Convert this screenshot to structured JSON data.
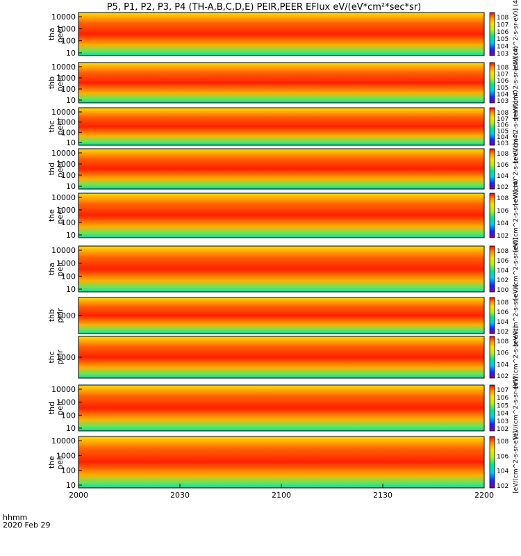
{
  "chart_data": {
    "type": "heatmap",
    "title": "P5, P1, P2, P3, P4 (TH-A,B,C,D,E) PEIR,PEER EFlux eV/(eV*cm²*sec*sr)",
    "x_ticks": [
      "2000",
      "2030",
      "2100",
      "2130",
      "2200"
    ],
    "x_range": [
      "20:00",
      "22:00"
    ],
    "x_label": "hhmm",
    "date_label": "2020 Feb 29",
    "panels": [
      {
        "label": [
          "tha",
          "peer"
        ],
        "yticks": [
          "10000",
          "1000",
          "100",
          "10"
        ],
        "cbar_ticks": [
          "10^8",
          "10^7",
          "10^6",
          "10^5",
          "10^4",
          "10^3"
        ],
        "cbar_label": "[eV/(cm^2-s-sr-eV)] (4)"
      },
      {
        "label": [
          "thb",
          "peer"
        ],
        "yticks": [
          "10000",
          "1000",
          "100",
          "10"
        ],
        "cbar_ticks": [
          "10^8",
          "10^7",
          "10^6",
          "10^5",
          "10^4",
          "10^3"
        ],
        "cbar_label": "[eV/(cm^2-s-sr-eV)] (4)"
      },
      {
        "label": [
          "thc",
          "peer"
        ],
        "yticks": [
          "10000",
          "1000",
          "100",
          "10"
        ],
        "cbar_ticks": [
          "10^8",
          "10^7",
          "10^6",
          "10^5",
          "10^4",
          "10^3"
        ],
        "cbar_label": "[eV/(cm^2-s-sr-eV)] (4)"
      },
      {
        "label": [
          "thd",
          "peer"
        ],
        "yticks": [
          "10000",
          "1000",
          "100",
          "10"
        ],
        "cbar_ticks": [
          "10^8",
          "10^6",
          "10^4",
          "10^2"
        ],
        "cbar_label": "[eV/(cm^2-s-sr-eV)] (4)"
      },
      {
        "label": [
          "the",
          "peer"
        ],
        "yticks": [
          "10000",
          "1000",
          "100",
          "10"
        ],
        "cbar_ticks": [
          "10^8",
          "10^6",
          "10^4",
          "10^2"
        ],
        "cbar_label": "[eV/(cm^2-s-sr-eV)] (4)"
      },
      {
        "label": [
          "tha",
          "peir"
        ],
        "yticks": [
          "10000",
          "1000",
          "100",
          "10"
        ],
        "cbar_ticks": [
          "10^8",
          "10^6",
          "10^4",
          "10^2",
          "10^0"
        ],
        "cbar_label": "[eV/(cm^2-s-sr-eV)]"
      },
      {
        "label": [
          "thb",
          "peir"
        ],
        "yticks": [
          "1000"
        ],
        "cbar_ticks": [
          "10^8",
          "10^6",
          "10^4",
          "10^2"
        ],
        "cbar_label": "[eV/(cm^2-s-sr-eV)]"
      },
      {
        "label": [
          "thc",
          "peir"
        ],
        "yticks": [
          "1000"
        ],
        "cbar_ticks": [
          "10^8",
          "10^6",
          "10^4",
          "10^2"
        ],
        "cbar_label": "[eV/(cm^2-s-sr-eV)]"
      },
      {
        "label": [
          "thd",
          "peir"
        ],
        "yticks": [
          "10000",
          "1000",
          "100",
          "10"
        ],
        "cbar_ticks": [
          "10^7",
          "10^6",
          "10^5",
          "10^4",
          "10^3",
          "10^2"
        ],
        "cbar_label": "[eV/(cm^2-s-sr-eV)]"
      },
      {
        "label": [
          "the",
          "peir"
        ],
        "yticks": [
          "10000",
          "1000",
          "100",
          "10"
        ],
        "cbar_ticks": [
          "10^8",
          "10^6",
          "10^4",
          "10^2"
        ],
        "cbar_label": "[eV/(cm^2-s-sr-eV)]"
      }
    ],
    "colorscale": [
      "#7a0a8a",
      "#2020ff",
      "#00c8ff",
      "#00e890",
      "#b0f020",
      "#ffe000",
      "#ff9000",
      "#ff0000"
    ]
  }
}
